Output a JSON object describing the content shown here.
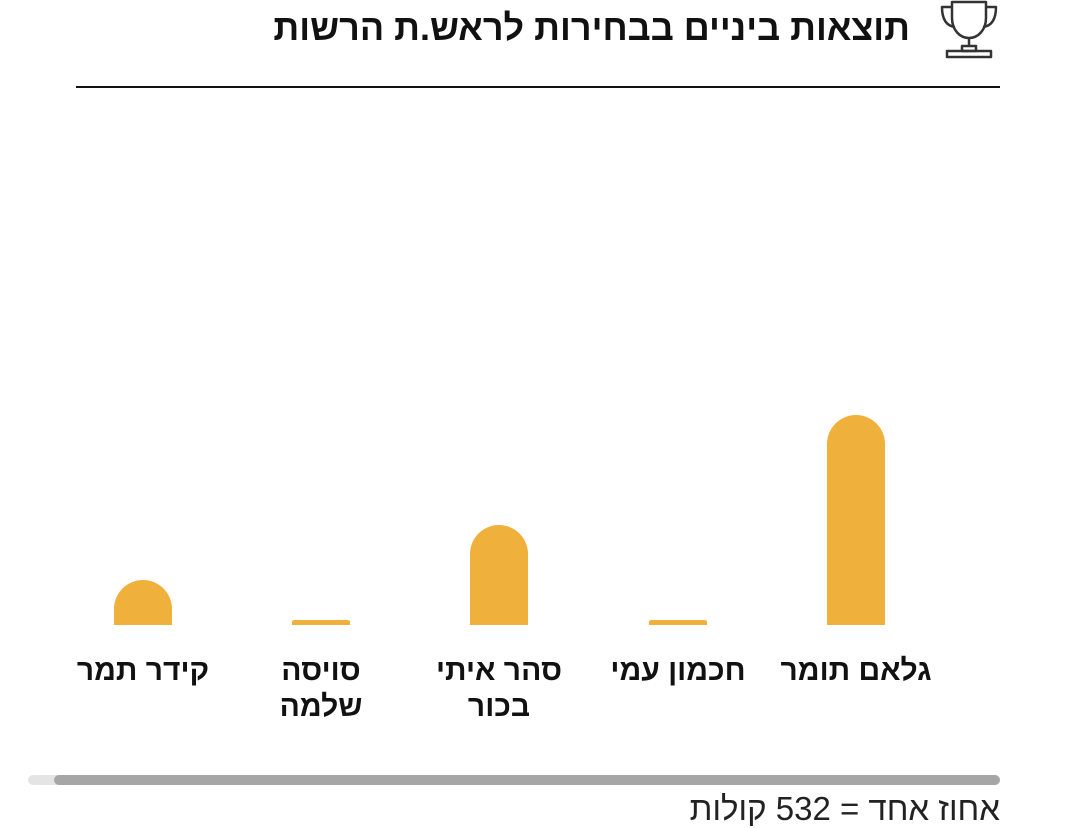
{
  "header": {
    "title": "תוצאות ביניים בבחירות לראש.ת הרשות",
    "icon": "trophy-icon"
  },
  "chart_data": {
    "type": "bar",
    "categories": [
      "גלאם תומר",
      "חכמון עמי",
      "סהר איתי בכור",
      "סויסה שלמה",
      "קידר תמר"
    ],
    "category_lines": [
      [
        "גלאם תומר"
      ],
      [
        "חכמון עמי"
      ],
      [
        "סהר איתי",
        "בכור"
      ],
      [
        "סויסה",
        "שלמה"
      ],
      [
        "קידר תמר"
      ]
    ],
    "values": [
      42,
      1,
      20,
      1,
      9
    ],
    "ylim": [
      0,
      100
    ],
    "grid": false,
    "bar_color": "#efb13c"
  },
  "footer": {
    "note": "אחוז אחד = 532 קולות"
  },
  "colors": {
    "bar": "#efb13c",
    "text": "#111111",
    "scrollbar_thumb": "#a6a6a6"
  }
}
